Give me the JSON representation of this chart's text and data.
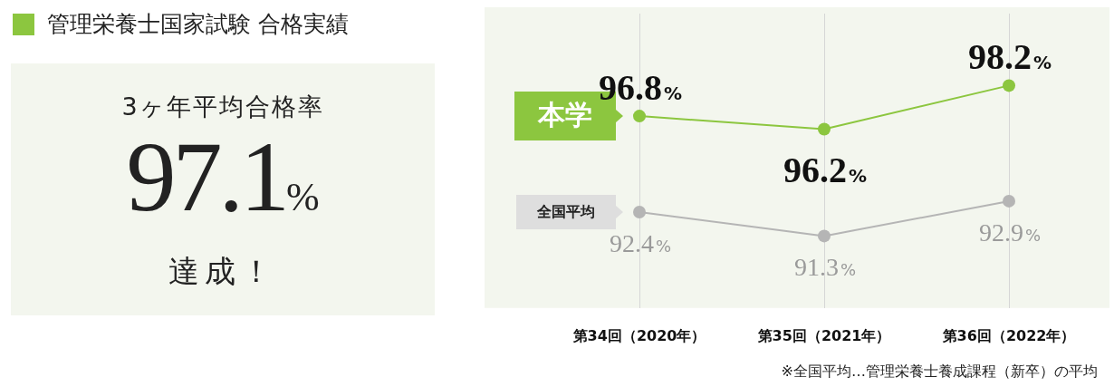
{
  "chart_data": [
    {
      "type": "other",
      "title": "管理栄養士国家試験 合格実績",
      "subtitle": "3ヶ年平均合格率",
      "annotations": [
        "97.1%",
        "達成！"
      ]
    },
    {
      "type": "line",
      "categories": [
        "第34回（2020年）",
        "第35回（2021年）",
        "第36回（2022年）"
      ],
      "series": [
        {
          "name": "本学",
          "color": "#8cc63f",
          "values": [
            96.8,
            96.2,
            98.2
          ],
          "value_labels": [
            "96.8%",
            "96.2%",
            "98.2%"
          ]
        },
        {
          "name": "全国平均",
          "color": "#b5b5b5",
          "values": [
            92.4,
            91.3,
            92.9
          ],
          "value_labels": [
            "92.4%",
            "91.3%",
            "92.9%"
          ]
        }
      ],
      "ylim": [
        88,
        101.5
      ],
      "tick_labels": "x",
      "grid": "x",
      "marker": "circle",
      "line_style": "solid",
      "legend": false,
      "annotations": [
        "※全国平均…管理栄養士養成課程（新卒）の平均"
      ]
    }
  ]
}
